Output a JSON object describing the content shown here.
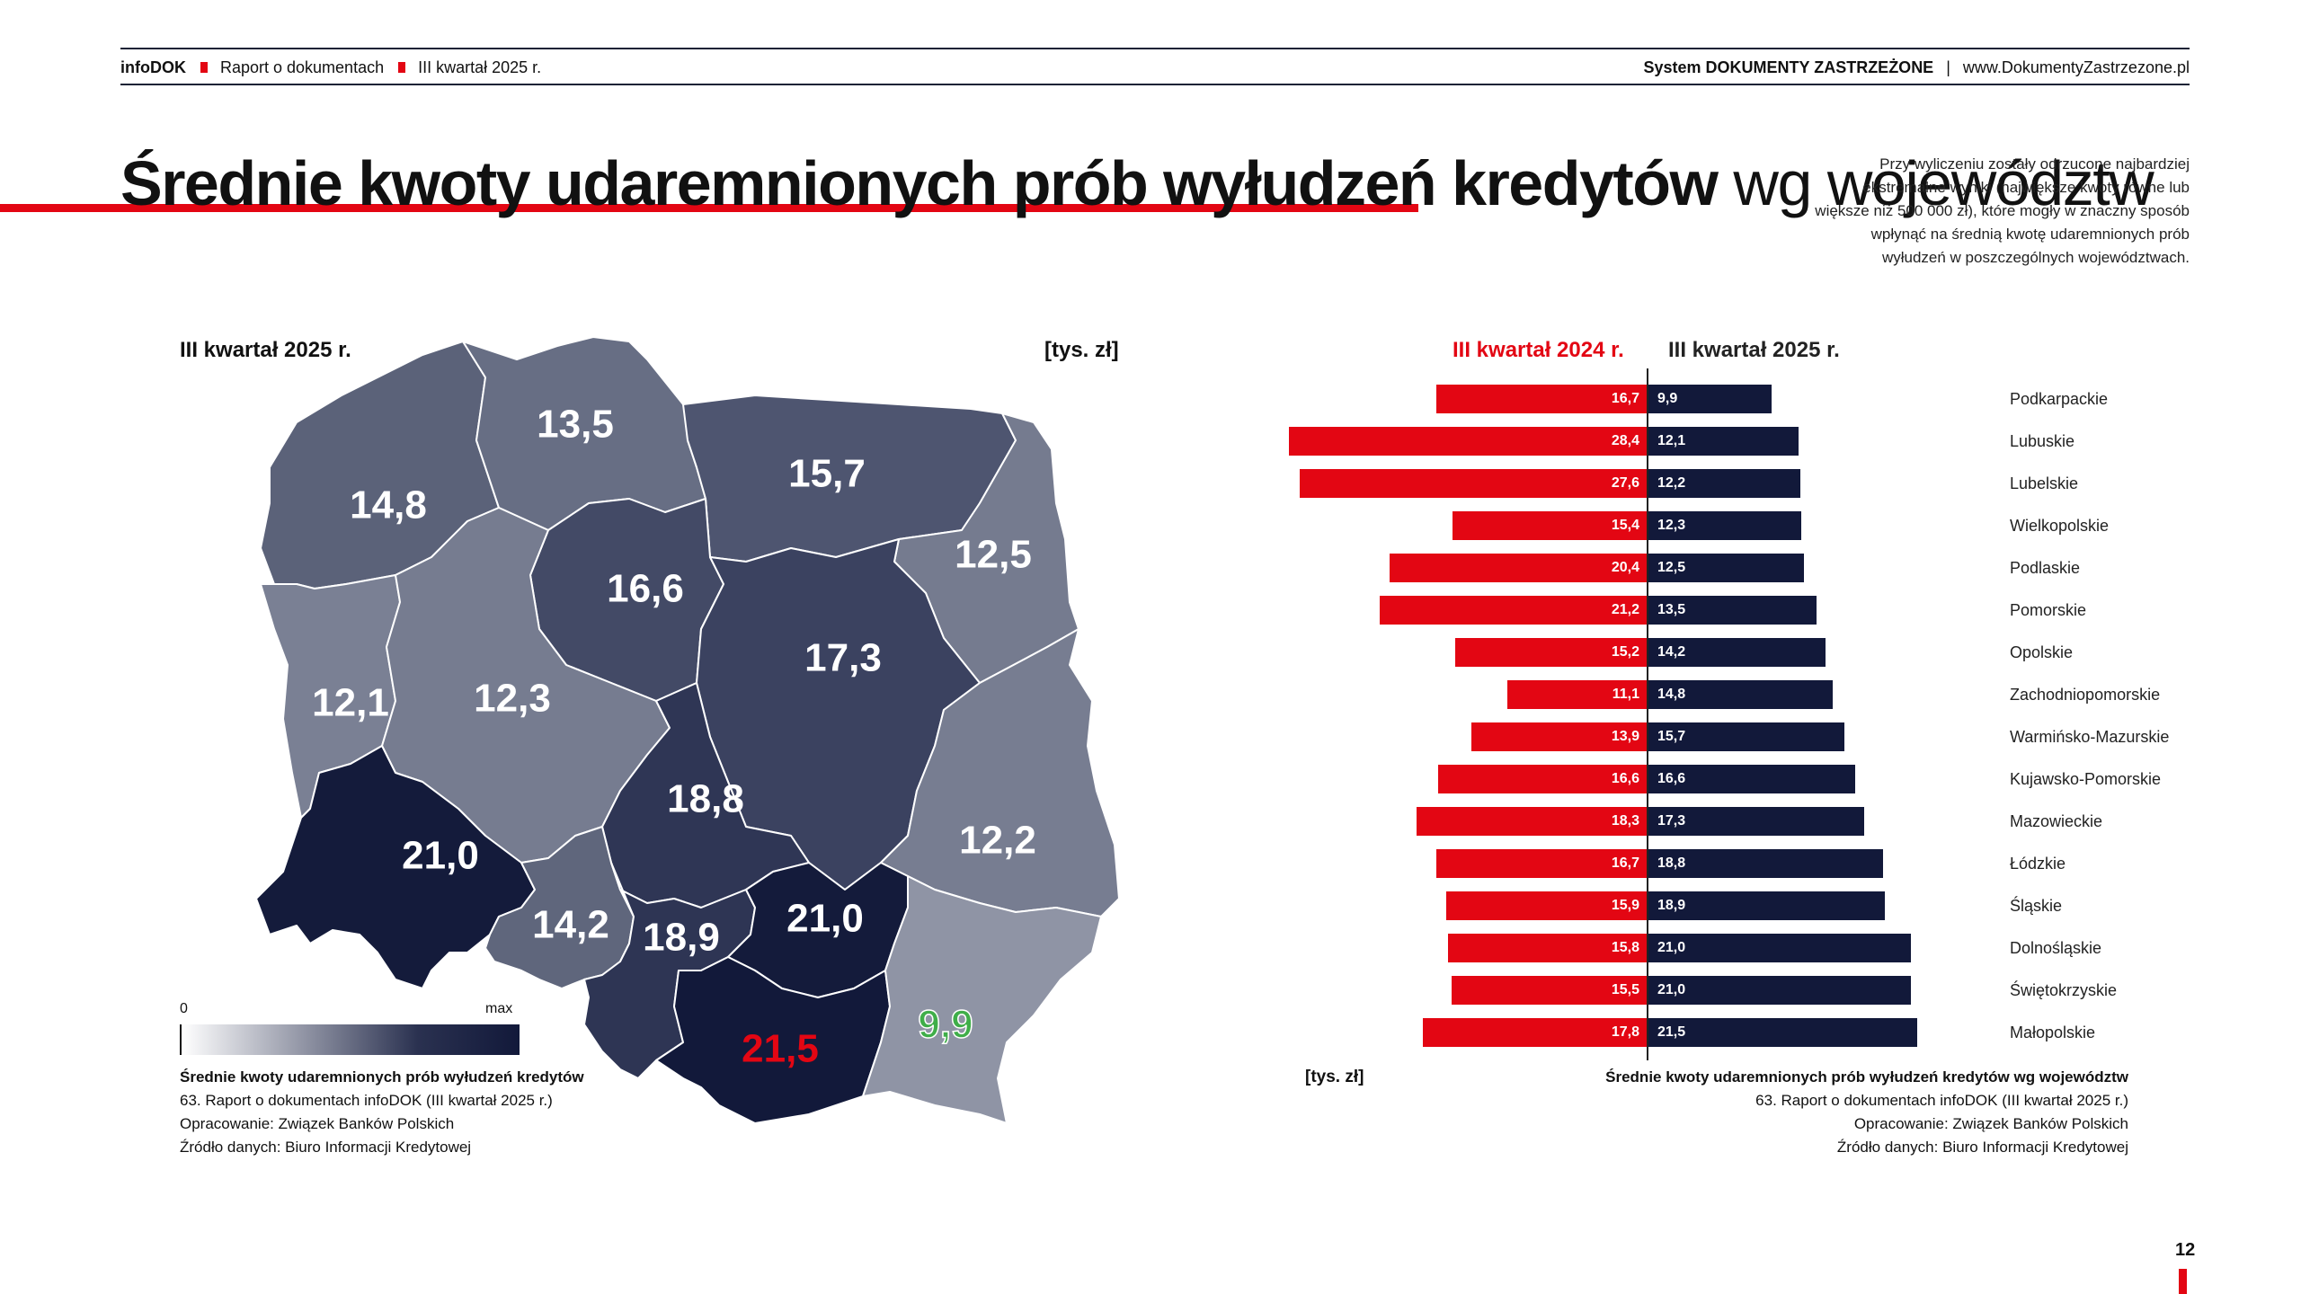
{
  "header": {
    "brand": "infoDOK",
    "report": "Raport o dokumentach",
    "quarter": "III kwartał 2025 r.",
    "system": "System DOKUMENTY ZASTRZEŻONE",
    "separator": "|",
    "url": "www.DokumentyZastrzezone.pl"
  },
  "title": {
    "strong": "Średnie kwoty udaremnionych prób wyłudzeń kredytów",
    "light": "wg województw"
  },
  "note": "Przy wyliczeniu zostały odrzucone najbardziej ekstremalne wyniki (największe kwoty równe lub większe niż 500 000 zł), które mogły w znaczny sposób wpłynąć na średnią kwotę udaremnionych prób wyłudzeń w poszczególnych województwach.",
  "map": {
    "period_label": "III kwartał 2025 r.",
    "unit_label": "[tys. zł]",
    "legend_min": "0",
    "legend_max": "max",
    "regions": [
      {
        "name": "Zachodniopomorskie",
        "value": "14,8",
        "color": "#5b6279",
        "label_color": "#ffffff"
      },
      {
        "name": "Pomorskie",
        "value": "13,5",
        "color": "#676e84",
        "label_color": "#ffffff"
      },
      {
        "name": "Warmińsko-Mazurskie",
        "value": "15,7",
        "color": "#4e5570",
        "label_color": "#ffffff"
      },
      {
        "name": "Podlaskie",
        "value": "12,5",
        "color": "#757b8f",
        "label_color": "#ffffff"
      },
      {
        "name": "Kujawsko-Pomorskie",
        "value": "16,6",
        "color": "#434a66",
        "label_color": "#ffffff"
      },
      {
        "name": "Lubuskie",
        "value": "12,1",
        "color": "#7a8094",
        "label_color": "#ffffff"
      },
      {
        "name": "Wielkopolskie",
        "value": "12,3",
        "color": "#767c90",
        "label_color": "#ffffff"
      },
      {
        "name": "Mazowieckie",
        "value": "17,3",
        "color": "#3b4260",
        "label_color": "#ffffff"
      },
      {
        "name": "Łódzkie",
        "value": "18,8",
        "color": "#2f3655",
        "label_color": "#ffffff"
      },
      {
        "name": "Lubelskie",
        "value": "12,2",
        "color": "#777d91",
        "label_color": "#ffffff"
      },
      {
        "name": "Dolnośląskie",
        "value": "21,0",
        "color": "#141b3b",
        "label_color": "#ffffff"
      },
      {
        "name": "Opolskie",
        "value": "14,2",
        "color": "#5f667c",
        "label_color": "#ffffff"
      },
      {
        "name": "Śląskie",
        "value": "18,9",
        "color": "#2e3554",
        "label_color": "#ffffff"
      },
      {
        "name": "Świętokrzyskie",
        "value": "21,0",
        "color": "#141b3b",
        "label_color": "#ffffff"
      },
      {
        "name": "Małopolskie",
        "value": "21,5",
        "color": "#12193a",
        "label_color": "#e30613"
      },
      {
        "name": "Podkarpackie",
        "value": "9,9",
        "color": "#8f94a5",
        "label_color": "#3fae49"
      }
    ],
    "caption": {
      "title": "Średnie kwoty udaremnionych prób wyłudzeń kredytów",
      "line1": "63. Raport o dokumentach infoDOK (III kwartał 2025 r.)",
      "line2": "Opracowanie: Związek Banków Polskich",
      "line3": "Źródło danych: Biuro Informacji Kredytowej"
    }
  },
  "chart_data": {
    "type": "bar",
    "orientation": "horizontal",
    "layout": "butterfly",
    "unit_label": "[tys. zł]",
    "categories": [
      "Podkarpackie",
      "Lubuskie",
      "Lubelskie",
      "Wielkopolskie",
      "Podlaskie",
      "Pomorskie",
      "Opolskie",
      "Zachodniopomorskie",
      "Warmińsko-Mazurskie",
      "Kujawsko-Pomorskie",
      "Mazowieckie",
      "Łódzkie",
      "Śląskie",
      "Dolnośląskie",
      "Świętokrzyskie",
      "Małopolskie"
    ],
    "series": [
      {
        "name": "III kwartał 2024 r.",
        "color": "#e30613",
        "values": [
          16.7,
          28.4,
          27.6,
          15.4,
          20.4,
          21.2,
          15.2,
          11.1,
          13.9,
          16.6,
          18.3,
          16.7,
          15.9,
          15.8,
          15.5,
          17.8
        ],
        "labels": [
          "16,7",
          "28,4",
          "27,6",
          "15,4",
          "20,4",
          "21,2",
          "15,2",
          "11,1",
          "13,9",
          "16,6",
          "18,3",
          "16,7",
          "15,9",
          "15,8",
          "15,5",
          "17,8"
        ]
      },
      {
        "name": "III kwartał 2025 r.",
        "color": "#12193a",
        "values": [
          9.9,
          12.1,
          12.2,
          12.3,
          12.5,
          13.5,
          14.2,
          14.8,
          15.7,
          16.6,
          17.3,
          18.8,
          18.9,
          21.0,
          21.0,
          21.5
        ],
        "labels": [
          "9,9",
          "12,1",
          "12,2",
          "12,3",
          "12,5",
          "13,5",
          "14,2",
          "14,8",
          "15,7",
          "16,6",
          "17,3",
          "18,8",
          "18,9",
          "21,0",
          "21,0",
          "21,5"
        ]
      }
    ],
    "caption": {
      "title": "Średnie kwoty udaremnionych prób wyłudzeń kredytów wg województw",
      "line1": "63. Raport o dokumentach infoDOK (III kwartał 2025 r.)",
      "line2": "Opracowanie: Związek Banków Polskich",
      "line3": "Źródło danych: Biuro Informacji Kredytowej"
    }
  },
  "page_number": "12",
  "colors": {
    "accent_red": "#e30613",
    "navy": "#12193a",
    "green_label": "#3fae49"
  }
}
